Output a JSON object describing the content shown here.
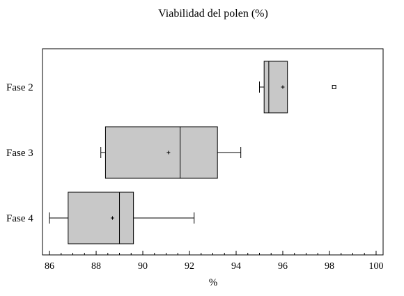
{
  "chart_data": {
    "type": "boxplot",
    "orientation": "horizontal",
    "title": "Viabilidad del polen (%)",
    "xlabel": "%",
    "ylabel": "",
    "xlim": [
      85.7,
      100.3
    ],
    "x_ticks": [
      86,
      88,
      90,
      92,
      94,
      96,
      98,
      100
    ],
    "x_tick_labels": [
      "86",
      "88",
      "90",
      "92",
      "94",
      "96",
      "98",
      "100"
    ],
    "grid": false,
    "legend": "none",
    "box_color": "#c8c8c8",
    "categories": [
      "Fase 2",
      "Fase 3",
      "Fase 4"
    ],
    "boxes": [
      {
        "label": "Fase 2",
        "whisker_low": 95.0,
        "q1": 95.2,
        "median": 95.4,
        "q3": 96.2,
        "whisker_high": 96.2,
        "mean": 96.0,
        "outliers": [
          98.2
        ]
      },
      {
        "label": "Fase 3",
        "whisker_low": 88.2,
        "q1": 88.4,
        "median": 91.6,
        "q3": 93.2,
        "whisker_high": 94.2,
        "mean": 91.1,
        "outliers": []
      },
      {
        "label": "Fase 4",
        "whisker_low": 86.0,
        "q1": 86.8,
        "median": 89.0,
        "q3": 89.6,
        "whisker_high": 92.2,
        "mean": 88.7,
        "outliers": []
      }
    ]
  }
}
